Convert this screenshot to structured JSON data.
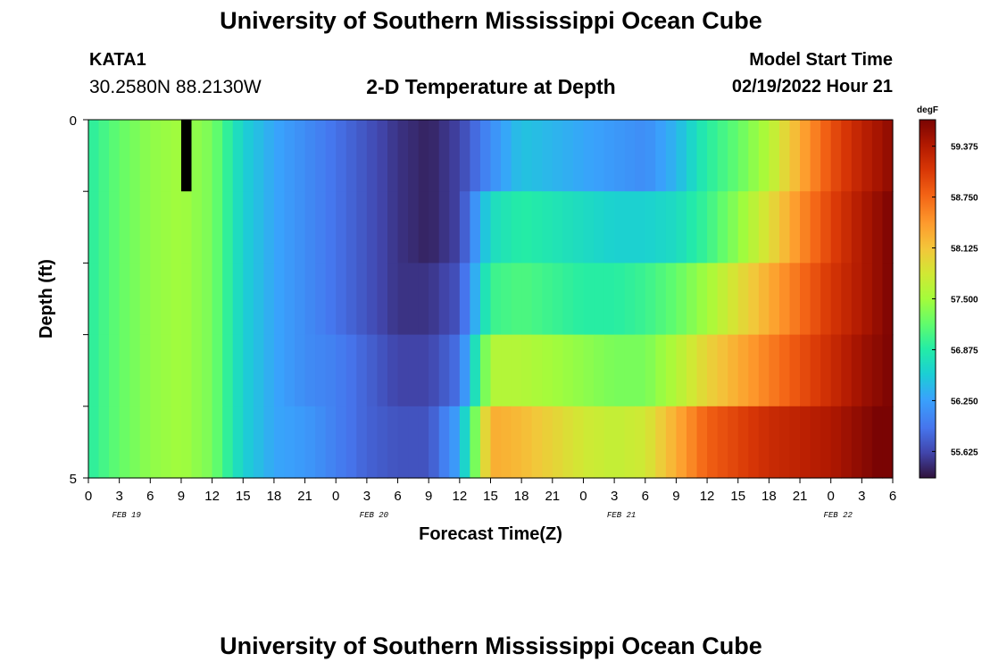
{
  "header": {
    "title": "University of Southern Mississippi Ocean Cube",
    "station_name": "KATA1",
    "station_coords": "30.2580N  88.2130W",
    "subtitle": "2-D Temperature at Depth",
    "model_start_label": "Model Start Time",
    "model_start_value": "02/19/2022 Hour 21"
  },
  "footer": {
    "title": "University of Southern Mississippi Ocean Cube"
  },
  "chart_data": {
    "type": "heatmap",
    "xlabel": "Forecast Time(Z)",
    "ylabel": "Depth (ft)",
    "x_tick_labels": [
      "0",
      "3",
      "6",
      "9",
      "12",
      "15",
      "18",
      "21",
      "0",
      "3",
      "6",
      "9",
      "12",
      "15",
      "18",
      "21",
      "0",
      "3",
      "6",
      "9",
      "12",
      "15",
      "18",
      "21",
      "0",
      "3",
      "6"
    ],
    "x_date_labels": [
      "FEB 19",
      "FEB 20",
      "FEB 21",
      "FEB 22"
    ],
    "x_range_hours": [
      0,
      78
    ],
    "y_tick_labels": [
      "0",
      "5"
    ],
    "y_range": [
      0,
      5
    ],
    "depth_levels": [
      0,
      1,
      2,
      3,
      4,
      5
    ],
    "colorbar": {
      "unit": "degF",
      "range": [
        55.3,
        59.7
      ],
      "ticks": [
        59.375,
        58.75,
        58.125,
        57.5,
        56.875,
        56.25,
        55.625
      ],
      "tick_labels": [
        "59.375",
        "58.750",
        "58.125",
        "57.500",
        "56.875",
        "56.250",
        "55.625"
      ]
    },
    "time_knots_hours": [
      0,
      3,
      6,
      9,
      12,
      15,
      18,
      21,
      24,
      27,
      30,
      33,
      36,
      39,
      42,
      45,
      48,
      51,
      54,
      57,
      60,
      63,
      66,
      69,
      72,
      75,
      78
    ],
    "values_by_layer": [
      [
        56.9,
        57.2,
        57.4,
        57.5,
        57.3,
        56.6,
        56.3,
        56.1,
        55.9,
        55.7,
        55.5,
        55.4,
        55.6,
        56.1,
        56.5,
        56.4,
        56.3,
        56.2,
        56.1,
        56.4,
        56.9,
        57.2,
        57.6,
        58.3,
        58.9,
        59.3,
        59.6
      ],
      [
        56.9,
        57.2,
        57.4,
        57.5,
        57.3,
        56.6,
        56.3,
        56.1,
        55.9,
        55.7,
        55.5,
        55.4,
        55.6,
        56.7,
        56.9,
        56.8,
        56.7,
        56.6,
        56.6,
        56.7,
        57.0,
        57.4,
        57.9,
        58.5,
        59.0,
        59.4,
        59.7
      ],
      [
        56.9,
        57.2,
        57.4,
        57.5,
        57.3,
        56.6,
        56.3,
        56.1,
        55.9,
        55.7,
        55.5,
        55.5,
        55.7,
        57.0,
        57.1,
        57.0,
        56.9,
        56.9,
        57.0,
        57.2,
        57.5,
        57.9,
        58.3,
        58.7,
        59.1,
        59.4,
        59.7
      ],
      [
        56.9,
        57.2,
        57.4,
        57.5,
        57.3,
        56.6,
        56.3,
        56.1,
        56.0,
        55.8,
        55.6,
        55.6,
        55.9,
        57.6,
        57.6,
        57.5,
        57.4,
        57.3,
        57.3,
        57.6,
        58.0,
        58.3,
        58.6,
        58.9,
        59.2,
        59.5,
        59.7
      ],
      [
        56.9,
        57.2,
        57.4,
        57.5,
        57.3,
        56.6,
        56.3,
        56.2,
        56.0,
        55.8,
        55.7,
        55.7,
        56.3,
        58.3,
        58.2,
        58.0,
        57.8,
        57.7,
        57.8,
        58.3,
        58.8,
        59.0,
        59.2,
        59.3,
        59.4,
        59.6,
        59.8
      ]
    ],
    "missing_cells": [
      {
        "hour": 9,
        "layer": 0
      }
    ]
  }
}
